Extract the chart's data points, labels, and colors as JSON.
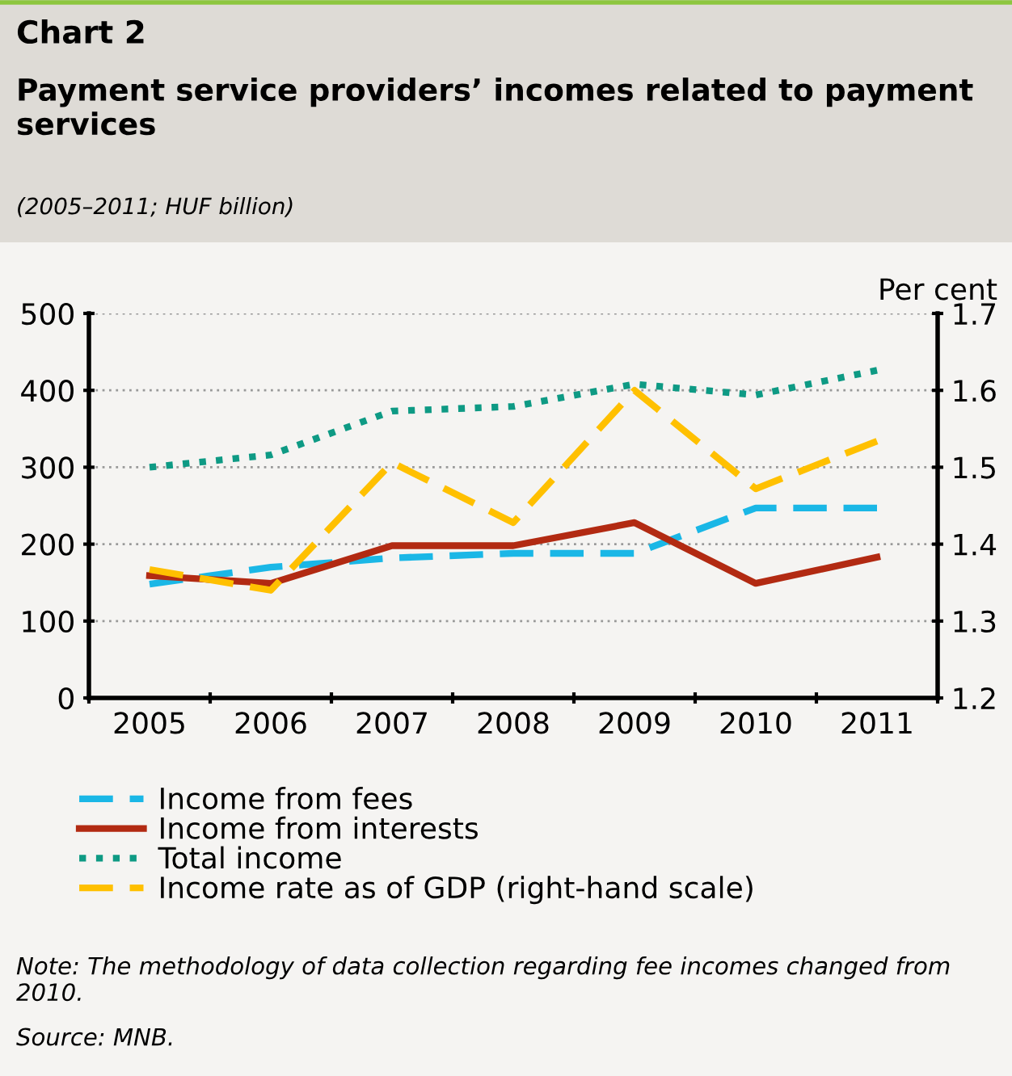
{
  "chart_data": {
    "type": "line",
    "title": "Chart 2",
    "subtitle": "Payment service providers’ incomes related to payment services",
    "y2label": "Per cent",
    "categories": [
      "2005",
      "2006",
      "2007",
      "2008",
      "2009",
      "2010",
      "2011"
    ],
    "series": [
      {
        "name": "Income from fees",
        "color": "#1ab7e6",
        "line_style": "dashed",
        "values": [
          148,
          170,
          182,
          188,
          188,
          247,
          247
        ]
      },
      {
        "name": "Income from interests",
        "color": "#b22a12",
        "line_style": "solid",
        "values": [
          159,
          149,
          198,
          198,
          228,
          149,
          183
        ]
      },
      {
        "name": "Total income",
        "color": "#0e9a84",
        "line_style": "dotted",
        "values": [
          300,
          316,
          373,
          379,
          408,
          394,
          426
        ]
      },
      {
        "name": "Income rate as of GDP (right-hand scale)",
        "color": "#ffc000",
        "line_style": "dashed",
        "axis": "y2",
        "values": [
          1.367,
          1.34,
          1.506,
          1.428,
          1.6,
          1.472,
          1.534
        ]
      }
    ],
    "ylim": [
      0,
      500
    ],
    "yticks": [
      0,
      100,
      200,
      300,
      400,
      500
    ],
    "y2lim": [
      1.2,
      1.7
    ],
    "y2ticks": [
      1.2,
      1.3,
      1.4,
      1.5,
      1.6,
      1.7
    ],
    "grid": "y",
    "legend": "bottom",
    "marker": "none",
    "annotations": [
      "(2005–2011; HUF billion)",
      "Note: The methodology of data collection regarding fee incomes changed from 2010.",
      "Source: MNB."
    ]
  }
}
